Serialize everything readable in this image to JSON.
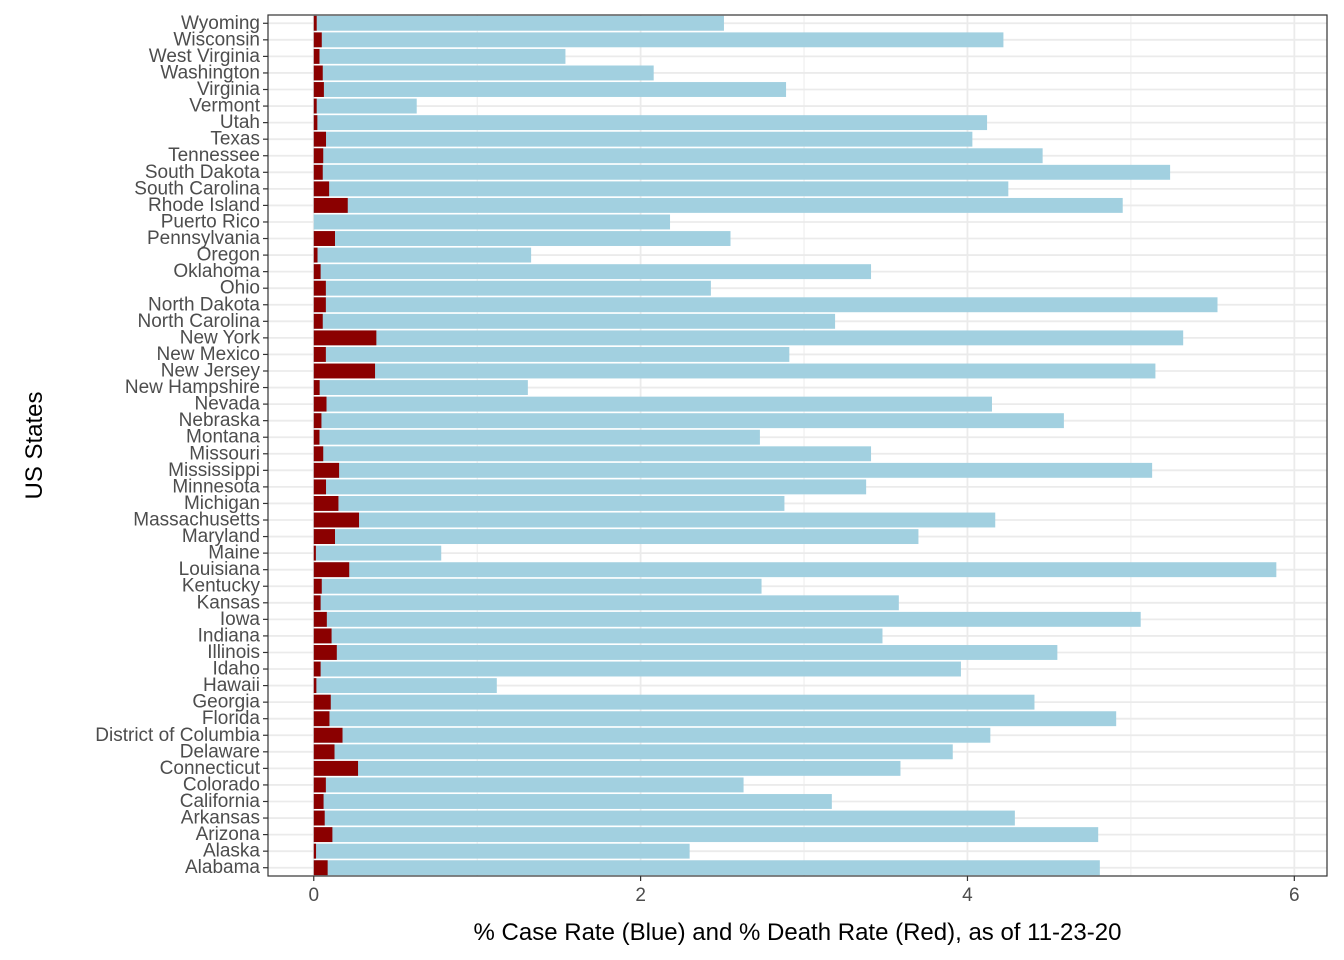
{
  "chart_data": {
    "type": "bar",
    "orientation": "horizontal",
    "title": "",
    "xlabel": "% Case Rate (Blue) and % Death Rate (Red), as of 11-23-20",
    "ylabel": "US States",
    "xlim": [
      -0.28,
      6.2
    ],
    "xticks": [
      0,
      2,
      4,
      6
    ],
    "grid": true,
    "legend": "none",
    "colors": {
      "cases": "#a2d0e0",
      "deaths": "#8b0000",
      "grid": "#ebebeb",
      "border": "#333333"
    },
    "categories": [
      "Alabama",
      "Alaska",
      "Arizona",
      "Arkansas",
      "California",
      "Colorado",
      "Connecticut",
      "Delaware",
      "District of Columbia",
      "Florida",
      "Georgia",
      "Hawaii",
      "Idaho",
      "Illinois",
      "Indiana",
      "Iowa",
      "Kansas",
      "Kentucky",
      "Louisiana",
      "Maine",
      "Maryland",
      "Massachusetts",
      "Michigan",
      "Minnesota",
      "Mississippi",
      "Missouri",
      "Montana",
      "Nebraska",
      "Nevada",
      "New Hampshire",
      "New Jersey",
      "New Mexico",
      "New York",
      "North Carolina",
      "North Dakota",
      "Ohio",
      "Oklahoma",
      "Oregon",
      "Pennsylvania",
      "Puerto Rico",
      "Rhode Island",
      "South Carolina",
      "South Dakota",
      "Tennessee",
      "Texas",
      "Utah",
      "Vermont",
      "Virginia",
      "Washington",
      "West Virginia",
      "Wisconsin",
      "Wyoming"
    ],
    "series": [
      {
        "key": "cases",
        "values": [
          4.81,
          2.3,
          4.8,
          4.29,
          3.17,
          2.63,
          3.59,
          3.91,
          4.14,
          4.91,
          4.41,
          1.12,
          3.96,
          4.55,
          3.48,
          5.06,
          3.58,
          2.74,
          5.89,
          0.78,
          3.7,
          4.17,
          2.88,
          3.38,
          5.13,
          3.41,
          2.73,
          4.59,
          4.15,
          1.31,
          5.15,
          2.91,
          5.32,
          3.19,
          5.53,
          2.43,
          3.41,
          1.33,
          2.55,
          2.18,
          4.95,
          4.25,
          5.24,
          4.46,
          4.03,
          4.12,
          0.63,
          2.89,
          2.08,
          1.54,
          4.22,
          2.51
        ]
      },
      {
        "key": "deaths",
        "values": [
          0.085,
          0.014,
          0.114,
          0.067,
          0.06,
          0.074,
          0.271,
          0.127,
          0.176,
          0.096,
          0.104,
          0.016,
          0.042,
          0.141,
          0.109,
          0.08,
          0.042,
          0.049,
          0.217,
          0.013,
          0.13,
          0.277,
          0.151,
          0.075,
          0.155,
          0.058,
          0.035,
          0.047,
          0.078,
          0.036,
          0.375,
          0.074,
          0.383,
          0.055,
          0.074,
          0.074,
          0.042,
          0.023,
          0.13,
          0.0,
          0.208,
          0.094,
          0.055,
          0.058,
          0.075,
          0.022,
          0.018,
          0.062,
          0.055,
          0.035,
          0.049,
          0.018
        ]
      }
    ]
  }
}
